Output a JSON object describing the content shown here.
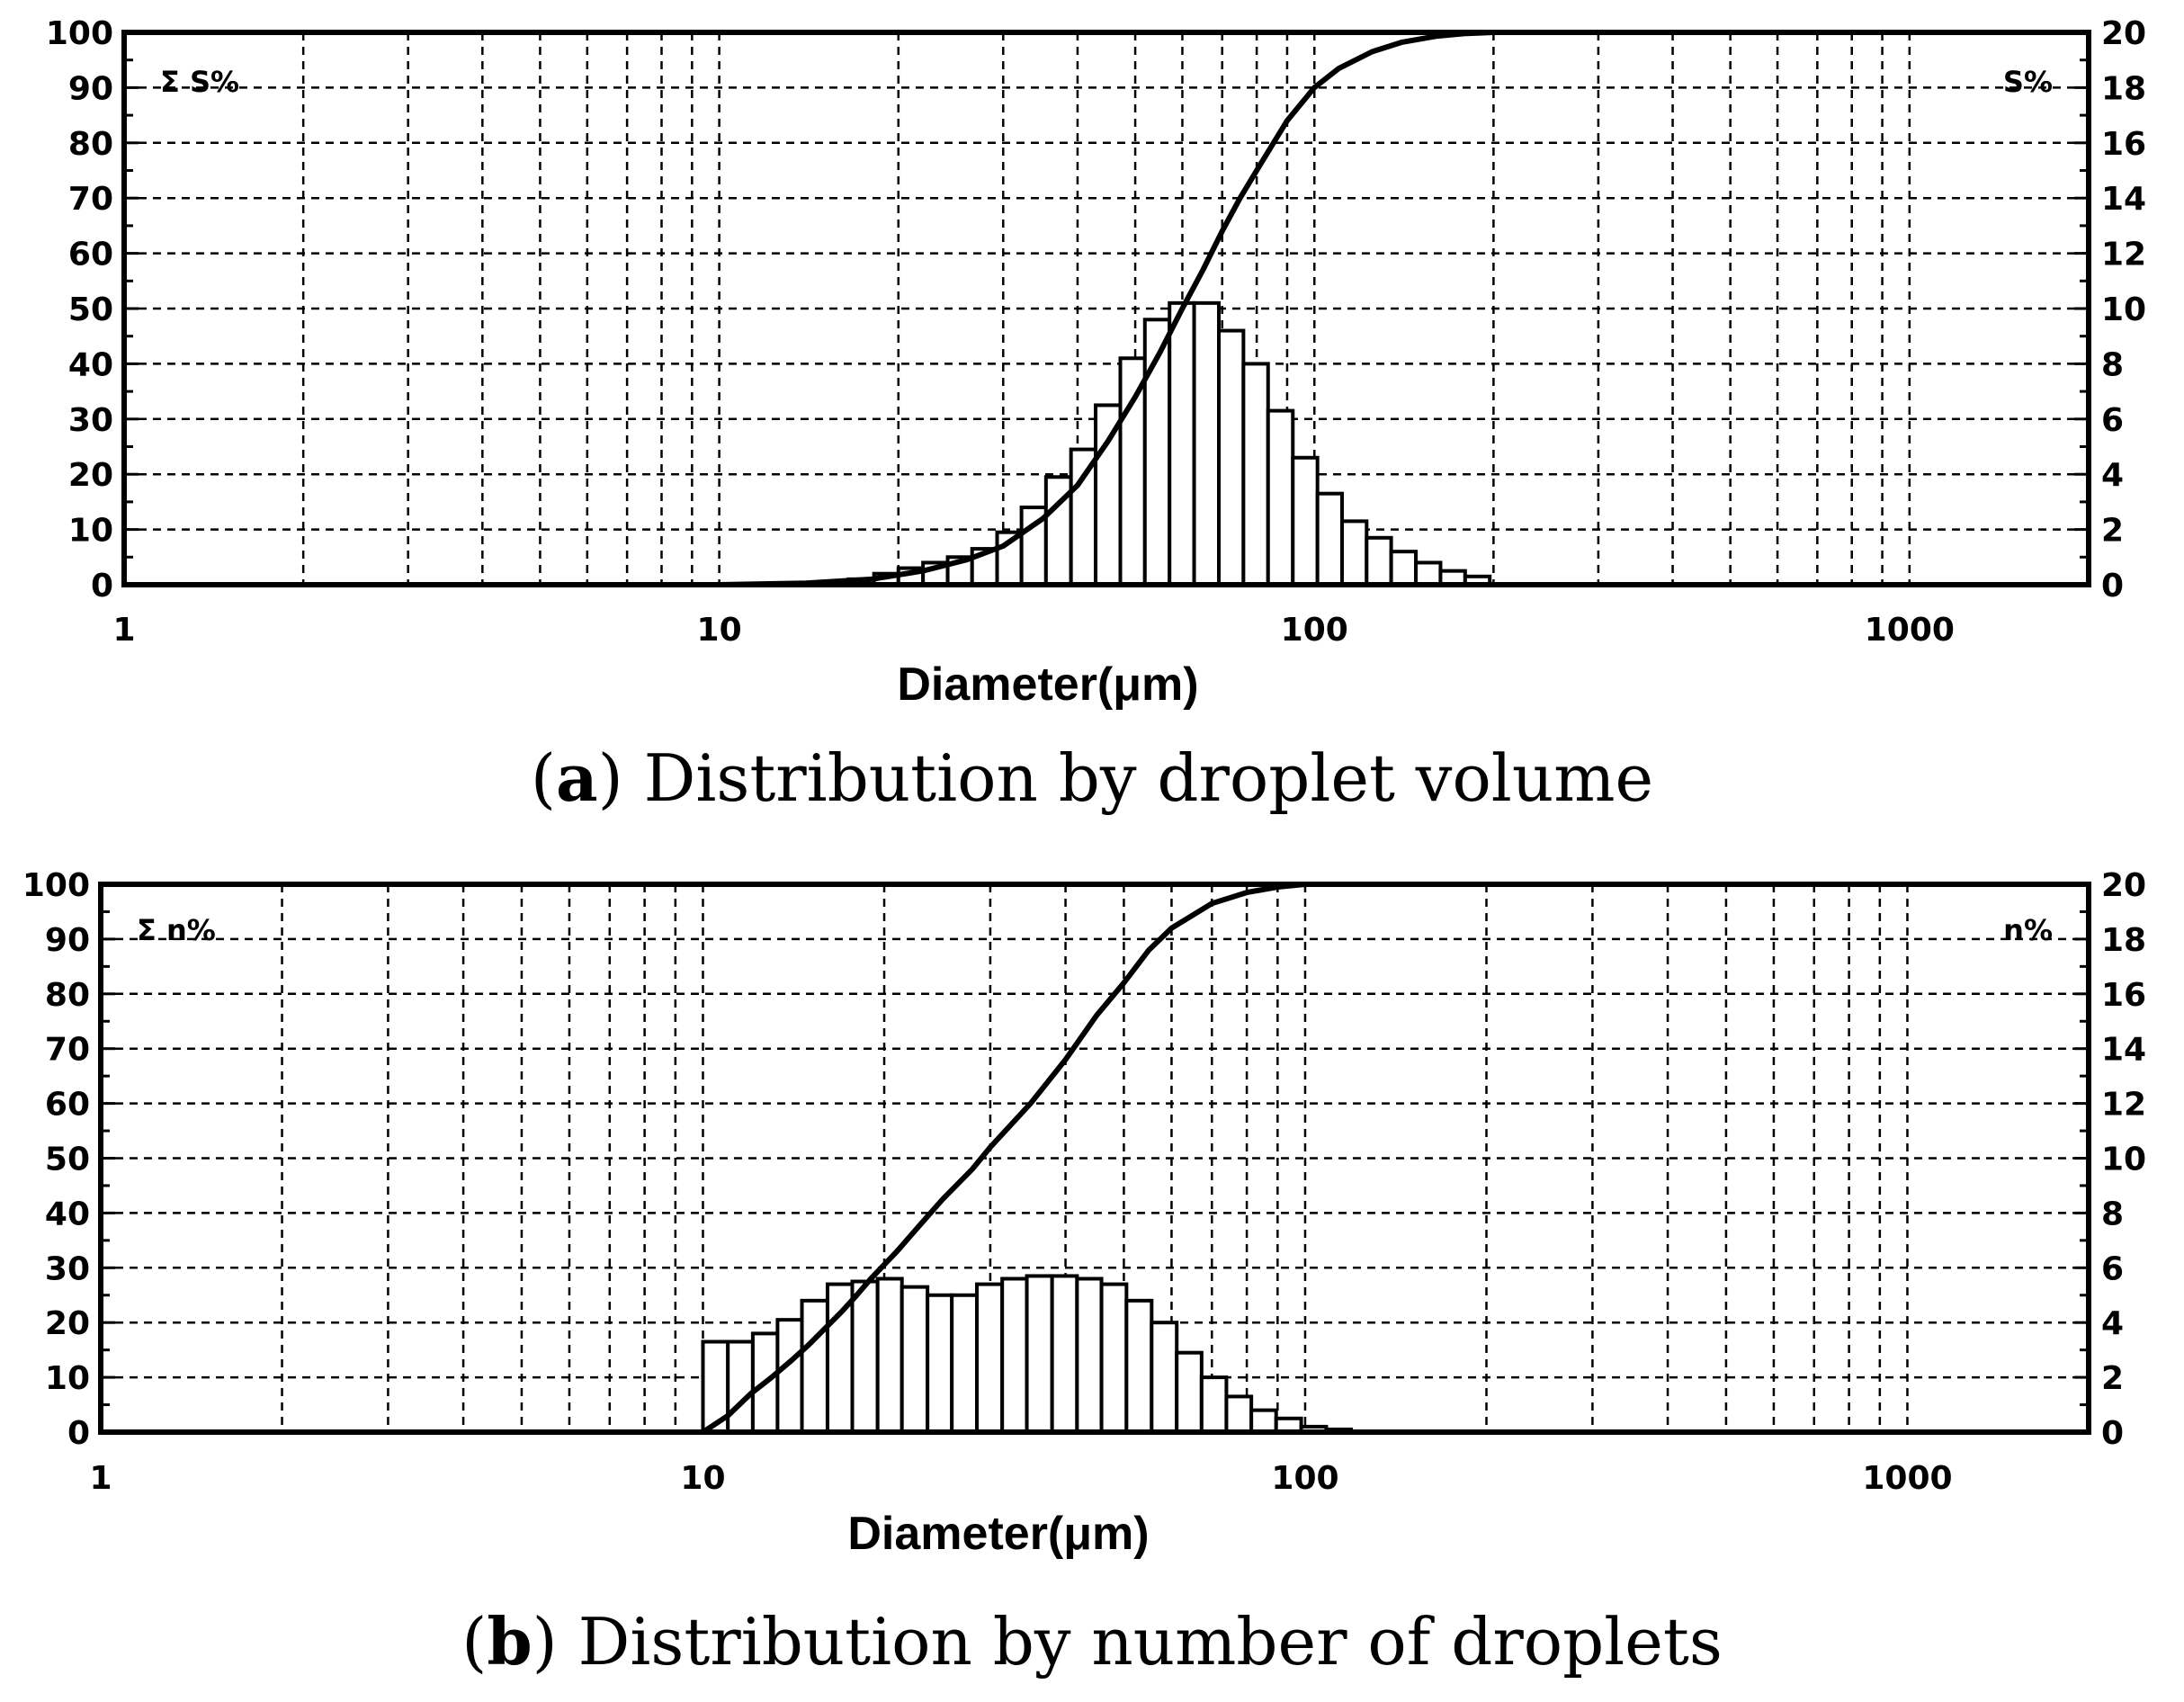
{
  "chart_data": [
    {
      "type": "bar",
      "panel": "a",
      "caption_letter": "a",
      "caption_text": "Distribution by droplet volume",
      "xlabel": "Diameter(μm)",
      "xscale": "log",
      "xlim": [
        1,
        2000
      ],
      "x_ticks": [
        1,
        10,
        100,
        1000
      ],
      "x_tick_labels": [
        "1",
        "10",
        "100",
        "1000"
      ],
      "left_axis_label": "Σ S%",
      "left_ylim": [
        0,
        100
      ],
      "left_ticks": [
        0,
        10,
        20,
        30,
        40,
        50,
        60,
        70,
        80,
        90,
        100
      ],
      "right_axis_label": "S%",
      "right_ylim": [
        0,
        20
      ],
      "right_ticks": [
        0,
        2,
        4,
        6,
        8,
        10,
        12,
        14,
        16,
        18,
        20
      ],
      "grid": true,
      "series": [
        {
          "name": "S%",
          "kind": "histogram",
          "axis": "right",
          "bins": [
            {
              "x0": 16.5,
              "x1": 18.2,
              "y": 0.2
            },
            {
              "x0": 18.2,
              "x1": 20.0,
              "y": 0.4
            },
            {
              "x0": 20.0,
              "x1": 22.0,
              "y": 0.6
            },
            {
              "x0": 22.0,
              "x1": 24.2,
              "y": 0.8
            },
            {
              "x0": 24.2,
              "x1": 26.6,
              "y": 1.0
            },
            {
              "x0": 26.6,
              "x1": 29.3,
              "y": 1.3
            },
            {
              "x0": 29.3,
              "x1": 32.2,
              "y": 1.9
            },
            {
              "x0": 32.2,
              "x1": 35.4,
              "y": 2.8
            },
            {
              "x0": 35.4,
              "x1": 39.0,
              "y": 3.9
            },
            {
              "x0": 39.0,
              "x1": 42.9,
              "y": 4.9
            },
            {
              "x0": 42.9,
              "x1": 47.2,
              "y": 6.5
            },
            {
              "x0": 47.2,
              "x1": 51.9,
              "y": 8.2
            },
            {
              "x0": 51.9,
              "x1": 57.1,
              "y": 9.6
            },
            {
              "x0": 57.1,
              "x1": 62.8,
              "y": 10.2
            },
            {
              "x0": 62.8,
              "x1": 69.1,
              "y": 10.2
            },
            {
              "x0": 69.1,
              "x1": 76.0,
              "y": 9.2
            },
            {
              "x0": 76.0,
              "x1": 83.6,
              "y": 8.0
            },
            {
              "x0": 83.6,
              "x1": 92.0,
              "y": 6.3
            },
            {
              "x0": 92.0,
              "x1": 101.2,
              "y": 4.6
            },
            {
              "x0": 101.2,
              "x1": 111.3,
              "y": 3.3
            },
            {
              "x0": 111.3,
              "x1": 122.4,
              "y": 2.3
            },
            {
              "x0": 122.4,
              "x1": 134.6,
              "y": 1.7
            },
            {
              "x0": 134.6,
              "x1": 148.1,
              "y": 1.2
            },
            {
              "x0": 148.1,
              "x1": 162.9,
              "y": 0.8
            },
            {
              "x0": 162.9,
              "x1": 179.2,
              "y": 0.5
            },
            {
              "x0": 179.2,
              "x1": 197.1,
              "y": 0.3
            }
          ]
        },
        {
          "name": "Σ S%",
          "kind": "line",
          "axis": "left",
          "points": [
            [
              10,
              0
            ],
            [
              14,
              0.3
            ],
            [
              18,
              1
            ],
            [
              22,
              2.5
            ],
            [
              26,
              4.5
            ],
            [
              30,
              7
            ],
            [
              35,
              12
            ],
            [
              40,
              18
            ],
            [
              45,
              26
            ],
            [
              50,
              34
            ],
            [
              55,
              42
            ],
            [
              60,
              50
            ],
            [
              65,
              57
            ],
            [
              70,
              64
            ],
            [
              75,
              70
            ],
            [
              80,
              75
            ],
            [
              90,
              84
            ],
            [
              100,
              90
            ],
            [
              110,
              93.5
            ],
            [
              125,
              96.5
            ],
            [
              140,
              98.2
            ],
            [
              160,
              99.3
            ],
            [
              180,
              99.8
            ],
            [
              200,
              100
            ],
            [
              2000,
              100
            ]
          ]
        }
      ]
    },
    {
      "type": "bar",
      "panel": "b",
      "caption_letter": "b",
      "caption_text": "Distribution by number of droplets",
      "xlabel": "Diameter(μm)",
      "xscale": "log",
      "xlim": [
        1,
        2000
      ],
      "x_ticks": [
        1,
        10,
        100,
        1000
      ],
      "x_tick_labels": [
        "1",
        "10",
        "100",
        "1000"
      ],
      "left_axis_label": "Σ n%",
      "left_ylim": [
        0,
        100
      ],
      "left_ticks": [
        0,
        10,
        20,
        30,
        40,
        50,
        60,
        70,
        80,
        90,
        100
      ],
      "right_axis_label": "n%",
      "right_ylim": [
        0,
        20
      ],
      "right_ticks": [
        0,
        2,
        4,
        6,
        8,
        10,
        12,
        14,
        16,
        18,
        20
      ],
      "grid": true,
      "series": [
        {
          "name": "n%",
          "kind": "histogram",
          "axis": "right",
          "bins": [
            {
              "x0": 10.0,
              "x1": 11.0,
              "y": 3.3
            },
            {
              "x0": 11.0,
              "x1": 12.1,
              "y": 3.3
            },
            {
              "x0": 12.1,
              "x1": 13.3,
              "y": 3.6
            },
            {
              "x0": 13.3,
              "x1": 14.6,
              "y": 4.1
            },
            {
              "x0": 14.6,
              "x1": 16.1,
              "y": 4.8
            },
            {
              "x0": 16.1,
              "x1": 17.7,
              "y": 5.4
            },
            {
              "x0": 17.7,
              "x1": 19.5,
              "y": 5.5
            },
            {
              "x0": 19.5,
              "x1": 21.4,
              "y": 5.6
            },
            {
              "x0": 21.4,
              "x1": 23.6,
              "y": 5.3
            },
            {
              "x0": 23.6,
              "x1": 25.9,
              "y": 5.0
            },
            {
              "x0": 25.9,
              "x1": 28.5,
              "y": 5.0
            },
            {
              "x0": 28.5,
              "x1": 31.4,
              "y": 5.4
            },
            {
              "x0": 31.4,
              "x1": 34.5,
              "y": 5.6
            },
            {
              "x0": 34.5,
              "x1": 38.0,
              "y": 5.7
            },
            {
              "x0": 38.0,
              "x1": 41.8,
              "y": 5.7
            },
            {
              "x0": 41.8,
              "x1": 45.9,
              "y": 5.6
            },
            {
              "x0": 45.9,
              "x1": 50.5,
              "y": 5.4
            },
            {
              "x0": 50.5,
              "x1": 55.6,
              "y": 4.8
            },
            {
              "x0": 55.6,
              "x1": 61.2,
              "y": 4.0
            },
            {
              "x0": 61.2,
              "x1": 67.3,
              "y": 2.9
            },
            {
              "x0": 67.3,
              "x1": 74.0,
              "y": 2.0
            },
            {
              "x0": 74.0,
              "x1": 81.4,
              "y": 1.3
            },
            {
              "x0": 81.4,
              "x1": 89.5,
              "y": 0.8
            },
            {
              "x0": 89.5,
              "x1": 98.5,
              "y": 0.5
            },
            {
              "x0": 98.5,
              "x1": 108.4,
              "y": 0.2
            },
            {
              "x0": 108.4,
              "x1": 119.2,
              "y": 0.1
            }
          ]
        },
        {
          "name": "Σ n%",
          "kind": "line",
          "axis": "left",
          "points": [
            [
              10,
              0
            ],
            [
              11,
              3
            ],
            [
              12,
              7
            ],
            [
              13,
              10
            ],
            [
              14,
              13
            ],
            [
              15,
              16
            ],
            [
              17,
              22
            ],
            [
              18,
              25
            ],
            [
              19,
              28
            ],
            [
              21,
              33
            ],
            [
              23,
              38
            ],
            [
              25,
              42.5
            ],
            [
              28,
              48
            ],
            [
              30,
              52
            ],
            [
              35,
              60
            ],
            [
              40,
              68
            ],
            [
              45,
              76
            ],
            [
              50,
              82
            ],
            [
              55,
              88
            ],
            [
              60,
              92
            ],
            [
              70,
              96.5
            ],
            [
              80,
              98.5
            ],
            [
              90,
              99.5
            ],
            [
              100,
              100
            ],
            [
              2000,
              100
            ]
          ]
        }
      ]
    }
  ]
}
